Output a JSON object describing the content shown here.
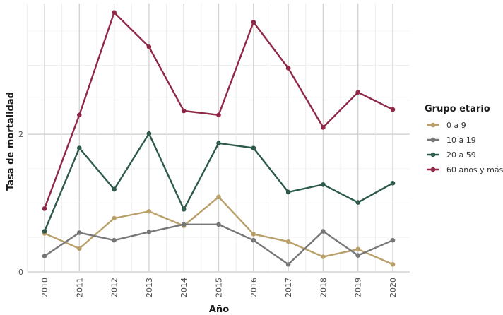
{
  "chart_data": {
    "type": "line",
    "title": "",
    "xlabel": "Año",
    "ylabel": "Tasa de mortalidad",
    "x": [
      2010,
      2011,
      2012,
      2013,
      2014,
      2015,
      2016,
      2017,
      2018,
      2019,
      2020
    ],
    "x_tick_labels": [
      "2010",
      "2011",
      "2012",
      "2013",
      "2014",
      "2015",
      "2016",
      "2017",
      "2018",
      "2019",
      "2020"
    ],
    "y_ticks": [
      0,
      2
    ],
    "y_tick_labels": [
      "0",
      "2"
    ],
    "ylim": [
      0,
      3.9
    ],
    "grid": true,
    "legend_title": "Grupo etario",
    "legend_position": "right",
    "series": [
      {
        "name": "0 a 9",
        "color": "#b9a06a",
        "values": [
          0.56,
          0.34,
          0.78,
          0.88,
          0.67,
          1.09,
          0.55,
          0.44,
          0.22,
          0.33,
          0.11
        ]
      },
      {
        "name": "10 a 19",
        "color": "#777777",
        "values": [
          0.23,
          0.57,
          0.46,
          0.58,
          0.69,
          0.69,
          0.46,
          0.11,
          0.59,
          0.24,
          0.46
        ]
      },
      {
        "name": "20 a 59",
        "color": "#2d5a4c",
        "values": [
          0.59,
          1.8,
          1.2,
          2.01,
          0.91,
          1.87,
          1.8,
          1.16,
          1.27,
          1.01,
          1.29
        ]
      },
      {
        "name": "60 años y más",
        "color": "#8f2846",
        "values": [
          0.92,
          2.28,
          3.77,
          3.27,
          2.34,
          2.28,
          3.63,
          2.96,
          2.1,
          2.61,
          2.36
        ]
      }
    ]
  }
}
